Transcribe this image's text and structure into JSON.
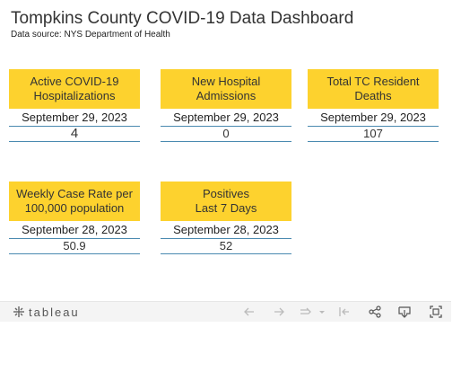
{
  "header": {
    "title": "Tompkins County COVID-19 Data Dashboard",
    "source": "Data source: NYS Department of Health"
  },
  "cards": [
    {
      "line1": "Active COVID-19",
      "line2": "Hospitalizations",
      "date": "September 29, 2023",
      "value": "4"
    },
    {
      "line1": "New Hospital",
      "line2": "Admissions",
      "date": "September 29, 2023",
      "value": "0"
    },
    {
      "line1": "Total TC Resident",
      "line2": "Deaths",
      "date": "September 29, 2023",
      "value": "107"
    },
    {
      "line1": "Weekly Case Rate per",
      "line2": "100,000 population",
      "date": "September 28, 2023",
      "value": "50.9"
    },
    {
      "line1": "Positives",
      "line2": "Last 7 Days",
      "date": "September 28, 2023",
      "value": "52"
    }
  ],
  "toolbar": {
    "logo_text": "tableau",
    "icons": [
      "undo-icon",
      "redo-icon",
      "revert-icon",
      "dropdown-icon",
      "reset-icon",
      "share-icon",
      "download-icon",
      "fullscreen-icon"
    ]
  },
  "colors": {
    "card_header": "#fdd22e",
    "rule": "#4a8ab0",
    "toolbar_bg": "#f4f4f4"
  }
}
